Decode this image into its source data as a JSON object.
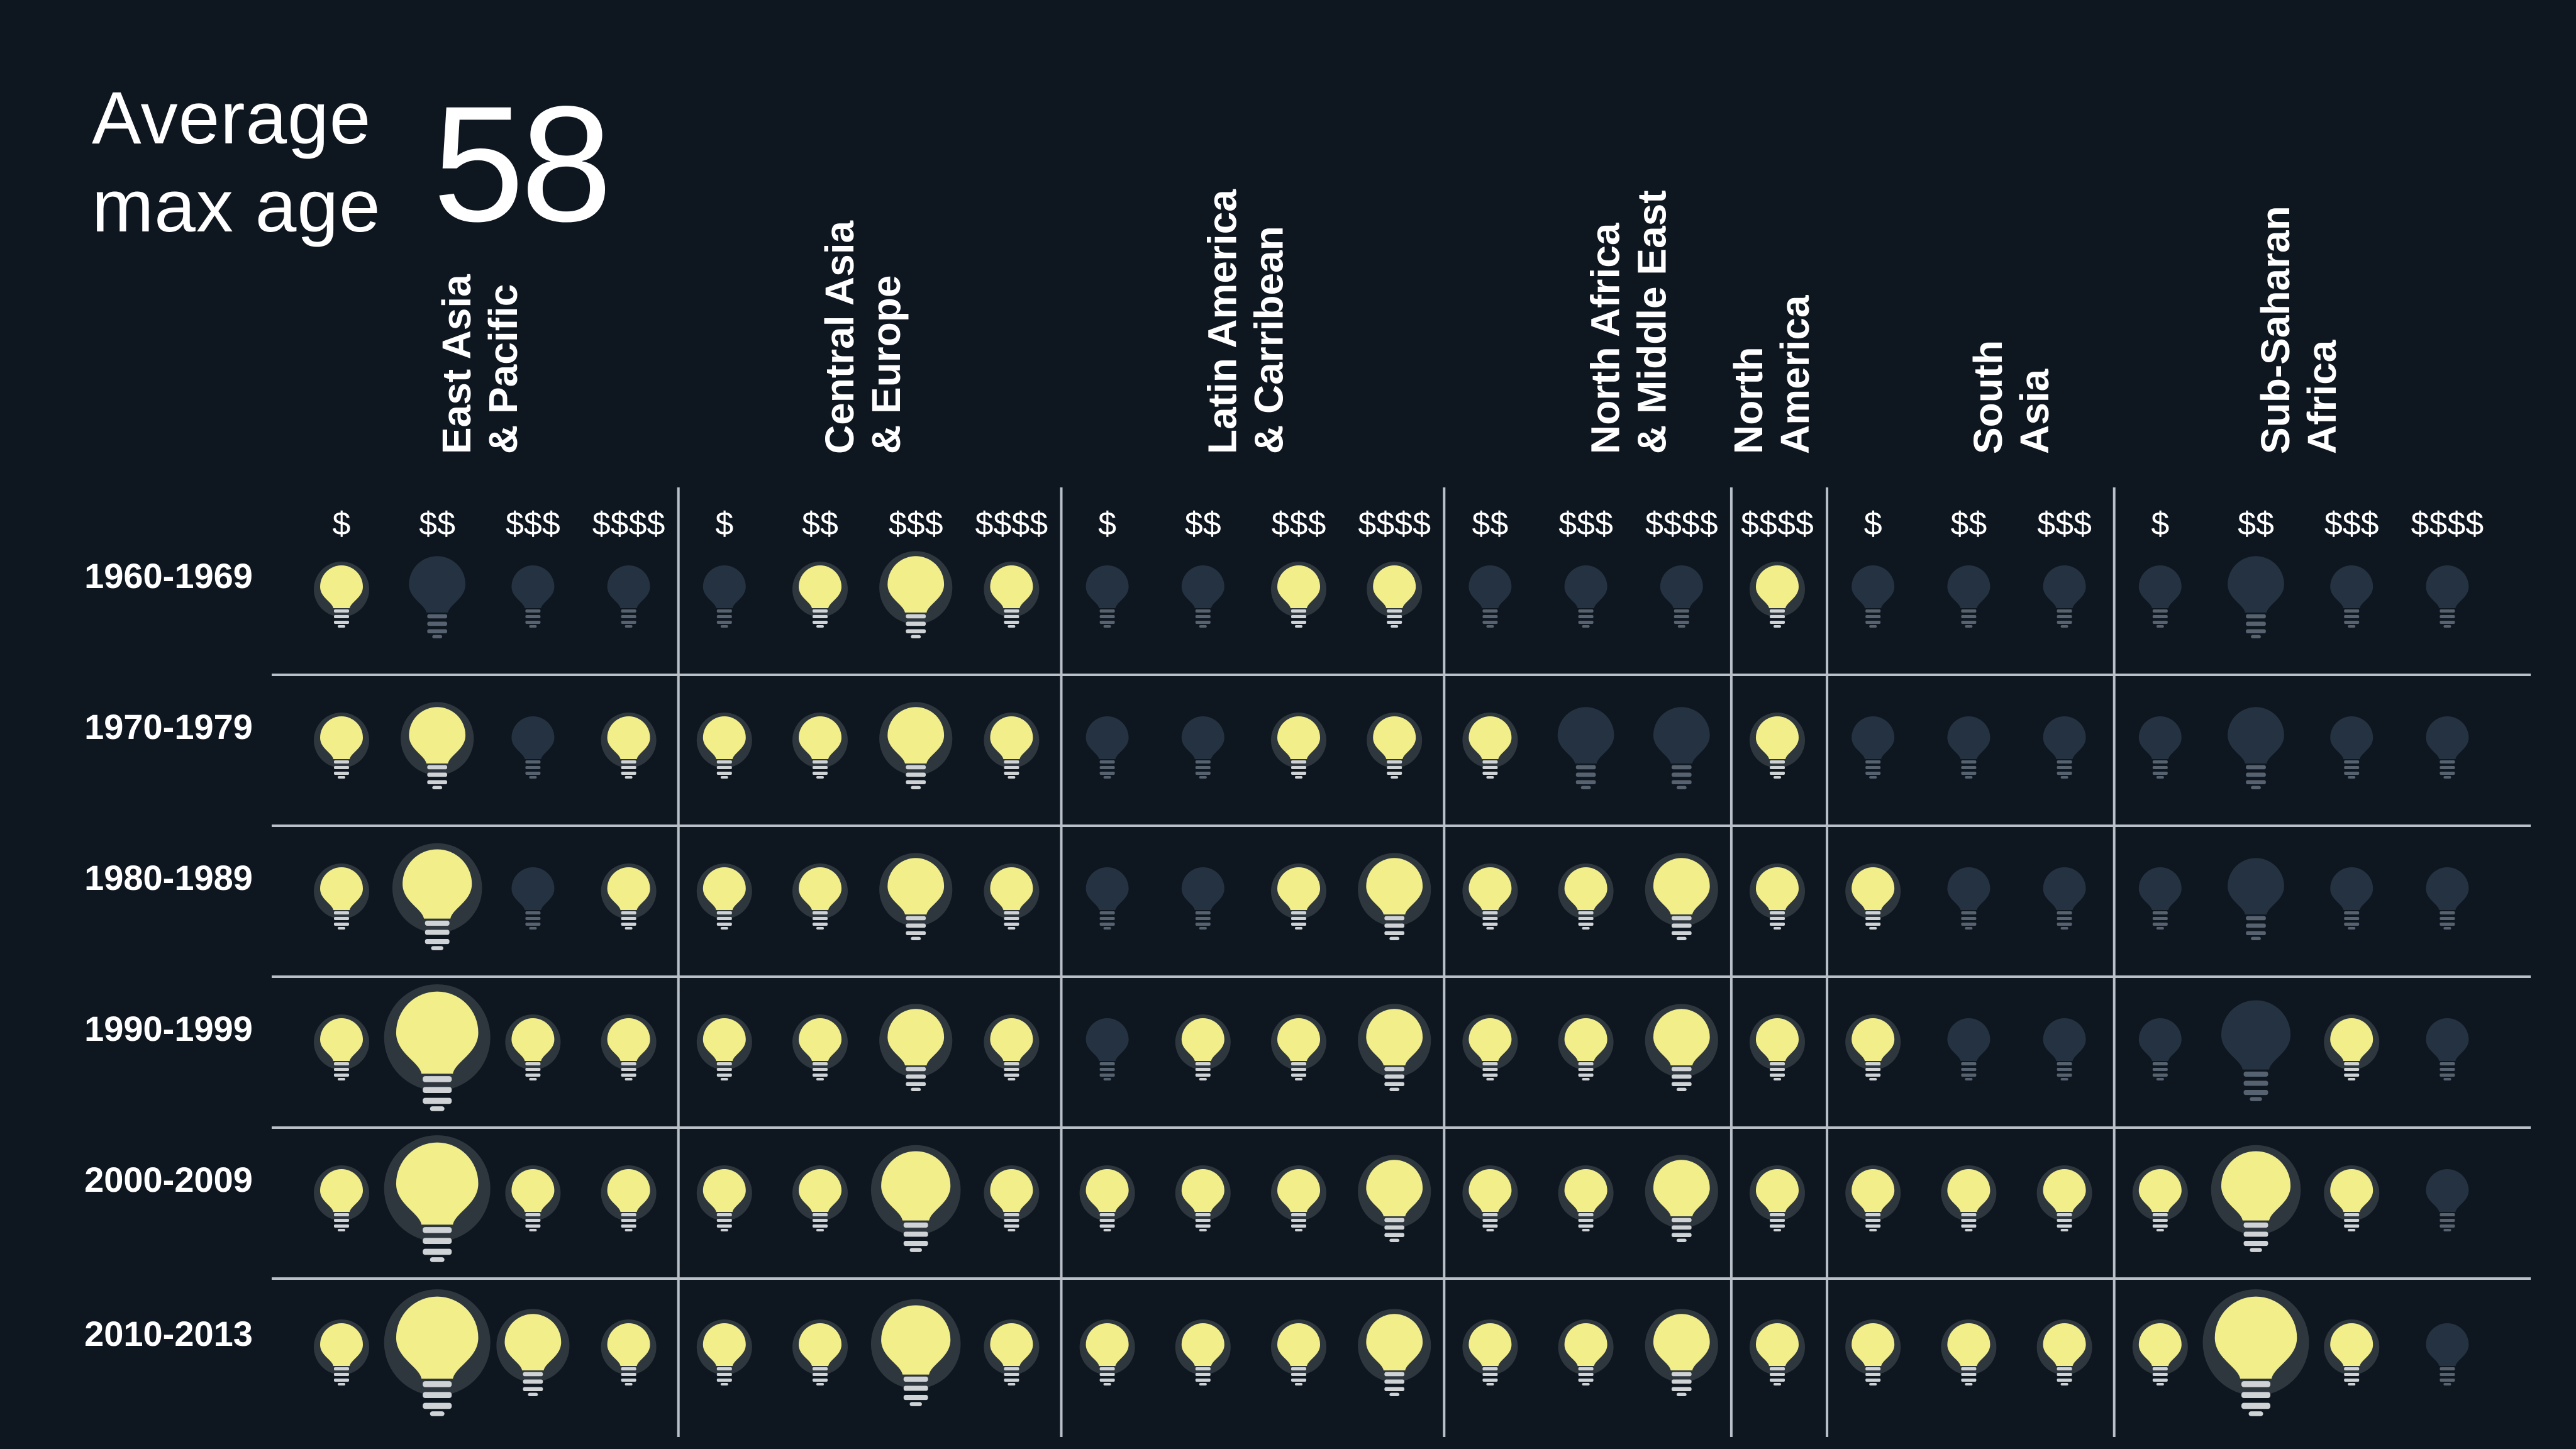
{
  "title": {
    "line1": "Average",
    "line2": "max age",
    "value": "58"
  },
  "colors": {
    "background": "#0e1620",
    "bulb_lit": "#f2ee8a",
    "bulb_glow": "#4a5358",
    "bulb_unlit": "#243241",
    "bulb_base": "#cfd3d6",
    "bulb_base_unlit": "#56626f",
    "grid": "#b9c0c8",
    "text": "#ffffff"
  },
  "chart_data": {
    "type": "table",
    "encoding": "one bulb per region, income tier and decade; a lit bulb = yes, an unlit bulb = no; bulb size = size level 1 (small) to 4 (large)",
    "decades": [
      "1960-1969",
      "1970-1979",
      "1980-1989",
      "1990-1999",
      "2000-2009",
      "2010-2013"
    ],
    "regions": [
      {
        "name_lines": [
          "East Asia",
          "& Pacific"
        ],
        "tiers": [
          "$",
          "$$",
          "$$$",
          "$$$$"
        ]
      },
      {
        "name_lines": [
          "Central Asia",
          "& Europe"
        ],
        "tiers": [
          "$",
          "$$",
          "$$$",
          "$$$$"
        ]
      },
      {
        "name_lines": [
          "Latin America",
          "& Carribean"
        ],
        "tiers": [
          "$",
          "$$",
          "$$$",
          "$$$$"
        ]
      },
      {
        "name_lines": [
          "North Africa",
          "& Middle East"
        ],
        "tiers": [
          "$$",
          "$$$",
          "$$$$"
        ]
      },
      {
        "name_lines": [
          "North",
          "America"
        ],
        "tiers": [
          "$$$$"
        ]
      },
      {
        "name_lines": [
          "South",
          "Asia"
        ],
        "tiers": [
          "$",
          "$$",
          "$$$"
        ]
      },
      {
        "name_lines": [
          "Sub-Saharan",
          "Africa"
        ],
        "tiers": [
          "$",
          "$$",
          "$$$",
          "$$$$"
        ]
      }
    ],
    "lit": [
      [
        1,
        0,
        0,
        0,
        0,
        1,
        1,
        1,
        0,
        0,
        1,
        1,
        0,
        0,
        0,
        1,
        0,
        0,
        0,
        0,
        0,
        0,
        0
      ],
      [
        1,
        1,
        0,
        1,
        1,
        1,
        1,
        1,
        0,
        0,
        1,
        1,
        1,
        0,
        0,
        1,
        0,
        0,
        0,
        0,
        0,
        0,
        0
      ],
      [
        1,
        1,
        0,
        1,
        1,
        1,
        1,
        1,
        0,
        0,
        1,
        1,
        1,
        1,
        1,
        1,
        1,
        0,
        0,
        0,
        0,
        0,
        0
      ],
      [
        1,
        1,
        1,
        1,
        1,
        1,
        1,
        1,
        0,
        1,
        1,
        1,
        1,
        1,
        1,
        1,
        1,
        0,
        0,
        0,
        0,
        1,
        0
      ],
      [
        1,
        1,
        1,
        1,
        1,
        1,
        1,
        1,
        1,
        1,
        1,
        1,
        1,
        1,
        1,
        1,
        1,
        1,
        1,
        1,
        1,
        1,
        0
      ],
      [
        1,
        1,
        1,
        1,
        1,
        1,
        1,
        1,
        1,
        1,
        1,
        1,
        1,
        1,
        1,
        1,
        1,
        1,
        1,
        1,
        1,
        1,
        0
      ]
    ],
    "size_level": [
      [
        1,
        2,
        1,
        1,
        1,
        1,
        2,
        1,
        1,
        1,
        1,
        1,
        1,
        1,
        1,
        1,
        1,
        1,
        1,
        1,
        2,
        1,
        1
      ],
      [
        1,
        2,
        1,
        1,
        1,
        1,
        2,
        1,
        1,
        1,
        1,
        1,
        1,
        2,
        2,
        1,
        1,
        1,
        1,
        1,
        2,
        1,
        1
      ],
      [
        1,
        3,
        1,
        1,
        1,
        1,
        2,
        1,
        1,
        1,
        1,
        2,
        1,
        1,
        2,
        1,
        1,
        1,
        1,
        1,
        2,
        1,
        1
      ],
      [
        1,
        4,
        1,
        1,
        1,
        1,
        2,
        1,
        1,
        1,
        1,
        2,
        1,
        1,
        2,
        1,
        1,
        1,
        1,
        1,
        3,
        1,
        1
      ],
      [
        1,
        4,
        1,
        1,
        1,
        1,
        3,
        1,
        1,
        1,
        1,
        2,
        1,
        1,
        2,
        1,
        1,
        1,
        1,
        1,
        3,
        1,
        1
      ],
      [
        1,
        4,
        2,
        1,
        1,
        1,
        3,
        1,
        1,
        1,
        1,
        2,
        1,
        1,
        2,
        1,
        1,
        1,
        1,
        1,
        4,
        1,
        1
      ]
    ]
  }
}
